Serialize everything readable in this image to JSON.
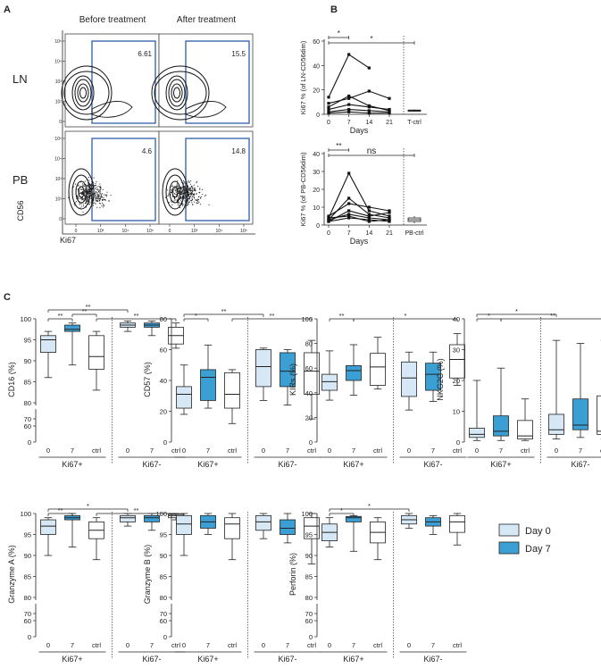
{
  "panels": {
    "A": "A",
    "B": "B",
    "C": "C"
  },
  "panel_a": {
    "col_before": "Before treatment",
    "col_after": "After treatment",
    "row_ln": "LN",
    "row_pb": "PB",
    "ylabel": "CD56",
    "xlabel": "Ki67",
    "gates": {
      "ln_before": "6.61",
      "ln_after": "15.5",
      "pb_before": "4.6",
      "pb_after": "14.8"
    },
    "gate_color": "#2b5ea8"
  },
  "colors": {
    "day0": "#d6e8f5",
    "day7": "#3c9fd3",
    "ctrl": "#ffffff",
    "stroke": "#222222"
  },
  "legend": {
    "day0": "Day 0",
    "day7": "Day 7"
  },
  "chart_data": [
    {
      "id": "B-LN",
      "type": "line",
      "ylabel": "Ki67 % (of LN-CD56dim)",
      "xlabel": "Days",
      "x_ticks": [
        "0",
        "7",
        "14",
        "21"
      ],
      "ctrl_label": "T-ctrl",
      "ylim": [
        0,
        60
      ],
      "y_ticks": [
        0,
        20,
        40,
        60
      ],
      "series": [
        {
          "x": [
            0,
            7,
            14
          ],
          "y": [
            14,
            49,
            38
          ]
        },
        {
          "x": [
            0,
            7,
            14,
            21
          ],
          "y": [
            9,
            13,
            19,
            13
          ]
        },
        {
          "x": [
            0,
            7,
            14,
            21
          ],
          "y": [
            6,
            15,
            7,
            3
          ]
        },
        {
          "x": [
            0,
            7,
            14,
            21
          ],
          "y": [
            4,
            8,
            6,
            4
          ]
        },
        {
          "x": [
            0,
            7,
            14,
            21
          ],
          "y": [
            2,
            4,
            3,
            2
          ]
        },
        {
          "x": [
            0,
            7,
            14,
            21
          ],
          "y": [
            1,
            2,
            1,
            1
          ]
        }
      ],
      "ctrl_box": {
        "min": 2,
        "q1": 2.5,
        "median": 3,
        "q3": 3.5,
        "max": 4
      },
      "sig": [
        {
          "from": "0",
          "to": "7",
          "label": "*"
        },
        {
          "from": "0",
          "to": "ctrl",
          "label": "*"
        }
      ]
    },
    {
      "id": "B-PB",
      "type": "line",
      "ylabel": "Ki67 % (of PB-CD56dim)",
      "xlabel": "Days",
      "x_ticks": [
        "0",
        "7",
        "14",
        "21"
      ],
      "ctrl_label": "PB-ctrl",
      "ylim": [
        0,
        40
      ],
      "y_ticks": [
        0,
        10,
        20,
        30,
        40
      ],
      "series": [
        {
          "x": [
            0,
            7,
            14,
            21
          ],
          "y": [
            4,
            29,
            8,
            5
          ]
        },
        {
          "x": [
            0,
            7,
            14,
            21
          ],
          "y": [
            3,
            15,
            6,
            4
          ]
        },
        {
          "x": [
            0,
            7,
            14,
            21
          ],
          "y": [
            5,
            12,
            10,
            8
          ]
        },
        {
          "x": [
            0,
            7,
            14,
            21
          ],
          "y": [
            2,
            8,
            5,
            7
          ]
        },
        {
          "x": [
            0,
            7,
            14,
            21
          ],
          "y": [
            3,
            6,
            4,
            3
          ]
        },
        {
          "x": [
            0,
            7,
            14,
            21
          ],
          "y": [
            4,
            5,
            2,
            3
          ]
        },
        {
          "x": [
            0,
            7,
            14,
            21
          ],
          "y": [
            2,
            4,
            3,
            2
          ]
        }
      ],
      "ctrl_box": {
        "min": 1,
        "q1": 2,
        "median": 3,
        "q3": 4,
        "max": 5
      },
      "sig": [
        {
          "from": "0",
          "to": "7",
          "label": "**"
        },
        {
          "from": "0",
          "to": "ctrl",
          "label": "ns"
        }
      ]
    },
    {
      "id": "C-CD16",
      "type": "box",
      "ylabel": "CD16 (%)",
      "groups": [
        "Ki67+",
        "Ki67-"
      ],
      "x_ticks": [
        "0",
        "7",
        "ctrl"
      ],
      "scale": {
        "lower": [
          0,
          60
        ],
        "upper": [
          80,
          100
        ]
      },
      "y_ticks": [
        0,
        60,
        70,
        80,
        85,
        90,
        95,
        100
      ],
      "boxes": [
        {
          "min": 86,
          "q1": 92,
          "median": 95,
          "q3": 96,
          "max": 97
        },
        {
          "min": 89,
          "q1": 97,
          "median": 97.5,
          "q3": 98.5,
          "max": 99
        },
        {
          "min": 83,
          "q1": 88,
          "median": 91,
          "q3": 96,
          "max": 97
        },
        {
          "min": 97,
          "q1": 98,
          "median": 98.5,
          "q3": 99,
          "max": 99.5
        },
        {
          "min": 96,
          "q1": 98,
          "median": 98.5,
          "q3": 99,
          "max": 99.5
        },
        {
          "min": 93,
          "q1": 94,
          "median": 96,
          "q3": 98,
          "max": 99
        }
      ],
      "sig": [
        {
          "from": 0,
          "to": 1,
          "label": "**",
          "level": 0
        },
        {
          "from": 1,
          "to": 2,
          "label": "**",
          "level": 1
        },
        {
          "from": 0,
          "to": 3,
          "label": "**",
          "level": 2
        },
        {
          "from": 2,
          "to": 5,
          "label": "**",
          "level": 0
        }
      ]
    },
    {
      "id": "C-CD57",
      "type": "box",
      "ylabel": "CD57 (%)",
      "groups": [
        "Ki67+",
        "Ki67-"
      ],
      "x_ticks": [
        "0",
        "7",
        "ctrl"
      ],
      "ylim": [
        0,
        80
      ],
      "y_ticks": [
        0,
        20,
        40,
        60,
        80
      ],
      "boxes": [
        {
          "min": 18,
          "q1": 22,
          "median": 31,
          "q3": 36,
          "max": 50
        },
        {
          "min": 22,
          "q1": 27,
          "median": 42,
          "q3": 47,
          "max": 63
        },
        {
          "min": 12,
          "q1": 22,
          "median": 31,
          "q3": 45,
          "max": 47
        },
        {
          "min": 27,
          "q1": 36,
          "median": 49,
          "q3": 60,
          "max": 61
        },
        {
          "min": 24,
          "q1": 36,
          "median": 46,
          "q3": 58,
          "max": 60
        },
        {
          "min": 15,
          "q1": 31,
          "median": 46,
          "q3": 58,
          "max": 66
        }
      ],
      "sig": [
        {
          "from": 0,
          "to": 1,
          "label": "*",
          "level": 0
        },
        {
          "from": 0,
          "to": 3,
          "label": "**",
          "level": 1
        },
        {
          "from": 2,
          "to": 5,
          "label": "**",
          "level": 0
        }
      ]
    },
    {
      "id": "C-KIRs",
      "type": "box",
      "ylabel": "KIRs (%)",
      "groups": [
        "Ki67+",
        "Ki67-"
      ],
      "x_ticks": [
        "0",
        "7",
        "ctrl"
      ],
      "ylim": [
        0,
        100
      ],
      "y_ticks": [
        0,
        20,
        40,
        60,
        80,
        100
      ],
      "boxes": [
        {
          "min": 34,
          "q1": 42,
          "median": 49,
          "q3": 55,
          "max": 74
        },
        {
          "min": 38,
          "q1": 50,
          "median": 58,
          "q3": 62,
          "max": 79
        },
        {
          "min": 43,
          "q1": 46,
          "median": 61,
          "q3": 72,
          "max": 85
        },
        {
          "min": 26,
          "q1": 37,
          "median": 52,
          "q3": 65,
          "max": 73
        },
        {
          "min": 33,
          "q1": 42,
          "median": 55,
          "q3": 64,
          "max": 73
        },
        {
          "min": 46,
          "q1": 52,
          "median": 67,
          "q3": 79,
          "max": 88
        }
      ],
      "sig": [
        {
          "from": 0,
          "to": 1,
          "label": "**",
          "level": 0
        },
        {
          "from": 1,
          "to": 5,
          "label": "*",
          "level": 0
        }
      ]
    },
    {
      "id": "C-NKG2C",
      "type": "box",
      "ylabel": "NKG2C (%)",
      "groups": [
        "Ki67+",
        "Ki67-"
      ],
      "x_ticks": [
        "0",
        "7",
        "ctrl"
      ],
      "ylim": [
        0,
        40
      ],
      "y_ticks": [
        0,
        10,
        20,
        30,
        40
      ],
      "boxes": [
        {
          "min": 0.5,
          "q1": 1.5,
          "median": 2.5,
          "q3": 4.5,
          "max": 20
        },
        {
          "min": 0.5,
          "q1": 2,
          "median": 3.5,
          "q3": 8.5,
          "max": 24
        },
        {
          "min": 0.5,
          "q1": 1,
          "median": 2,
          "q3": 7,
          "max": 14
        },
        {
          "min": 1,
          "q1": 2.5,
          "median": 4,
          "q3": 9,
          "max": 33
        },
        {
          "min": 1.5,
          "q1": 4,
          "median": 5.5,
          "q3": 14,
          "max": 32
        },
        {
          "min": 1,
          "q1": 2.5,
          "median": 3.5,
          "q3": 15,
          "max": 33
        }
      ],
      "sig": [
        {
          "from": 0,
          "to": 1,
          "label": "*",
          "level": 0
        },
        {
          "from": 0,
          "to": 3,
          "label": "*",
          "level": 1
        },
        {
          "from": 1,
          "to": 5,
          "label": "**",
          "level": 0
        }
      ]
    },
    {
      "id": "C-GranzymeA",
      "type": "box",
      "ylabel": "Granzyme A (%)",
      "groups": [
        "Ki67+",
        "Ki67-"
      ],
      "x_ticks": [
        "0",
        "7",
        "ctrl"
      ],
      "scale": {
        "lower": [
          0,
          60
        ],
        "upper": [
          80,
          100
        ]
      },
      "y_ticks": [
        0,
        60,
        70,
        80,
        85,
        90,
        95,
        100
      ],
      "boxes": [
        {
          "min": 90,
          "q1": 95,
          "median": 97,
          "q3": 98.5,
          "max": 99
        },
        {
          "min": 92,
          "q1": 98.5,
          "median": 99,
          "q3": 99.5,
          "max": 100
        },
        {
          "min": 89,
          "q1": 94,
          "median": 96,
          "q3": 98,
          "max": 99
        },
        {
          "min": 97,
          "q1": 98,
          "median": 99,
          "q3": 99.5,
          "max": 100
        },
        {
          "min": 96,
          "q1": 98,
          "median": 99,
          "q3": 99.5,
          "max": 100
        },
        {
          "min": 98.5,
          "q1": 99,
          "median": 99.5,
          "q3": 99.8,
          "max": 100
        }
      ],
      "sig": [
        {
          "from": 0,
          "to": 1,
          "label": "**",
          "level": 0
        },
        {
          "from": 0,
          "to": 3,
          "label": "*",
          "level": 1
        },
        {
          "from": 2,
          "to": 5,
          "label": "**",
          "level": 0
        }
      ]
    },
    {
      "id": "C-GranzymeB",
      "type": "box",
      "ylabel": "Granzyme B (%)",
      "groups": [
        "Ki67+",
        "Ki67-"
      ],
      "x_ticks": [
        "0",
        "7",
        "ctrl"
      ],
      "scale": {
        "lower": [
          0,
          60
        ],
        "upper": [
          80,
          100
        ]
      },
      "y_ticks": [
        0,
        60,
        70,
        80,
        85,
        90,
        95,
        100
      ],
      "boxes": [
        {
          "min": 90,
          "q1": 95,
          "median": 97.5,
          "q3": 99.5,
          "max": 100
        },
        {
          "min": 95,
          "q1": 96.5,
          "median": 98,
          "q3": 99.5,
          "max": 100
        },
        {
          "min": 89,
          "q1": 94,
          "median": 97.5,
          "q3": 99,
          "max": 100
        },
        {
          "min": 94,
          "q1": 96,
          "median": 98,
          "q3": 99.5,
          "max": 100
        },
        {
          "min": 93,
          "q1": 95,
          "median": 96.5,
          "q3": 98.5,
          "max": 100
        },
        {
          "min": 88,
          "q1": 94,
          "median": 97,
          "q3": 99,
          "max": 100
        }
      ],
      "sig": []
    },
    {
      "id": "C-Perforin",
      "type": "box",
      "ylabel": "Perforin (%)",
      "groups": [
        "Ki67+",
        "Ki67-"
      ],
      "x_ticks": [
        "0",
        "7",
        "ctrl"
      ],
      "scale": {
        "lower": [
          0,
          60
        ],
        "upper": [
          80,
          100
        ]
      },
      "y_ticks": [
        0,
        60,
        70,
        80,
        85,
        90,
        95,
        100
      ],
      "boxes": [
        {
          "min": 92,
          "q1": 93.5,
          "median": 95.5,
          "q3": 97.5,
          "max": 99
        },
        {
          "min": 91,
          "q1": 98,
          "median": 99,
          "q3": 99.3,
          "max": 99.5
        },
        {
          "min": 89,
          "q1": 93,
          "median": 95.5,
          "q3": 98,
          "max": 99
        },
        {
          "min": 96.5,
          "q1": 97.5,
          "median": 98.5,
          "q3": 99.5,
          "max": 100
        },
        {
          "min": 95,
          "q1": 97,
          "median": 98,
          "q3": 99,
          "max": 99.5
        },
        {
          "min": 92.5,
          "q1": 95.5,
          "median": 98,
          "q3": 99.5,
          "max": 100
        }
      ],
      "sig": [
        {
          "from": 0,
          "to": 1,
          "label": "*",
          "level": 0
        },
        {
          "from": 0,
          "to": 3,
          "label": "*",
          "level": 1
        }
      ]
    }
  ]
}
